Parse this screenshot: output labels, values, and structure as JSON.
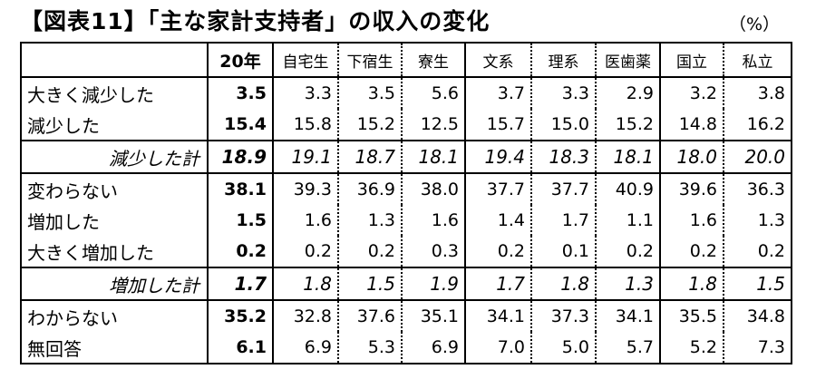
{
  "header": {
    "title": "【図表11】「主な家計支持者」の収入の変化",
    "unit": "（%）"
  },
  "table": {
    "columns": [
      "20年",
      "自宅生",
      "下宿生",
      "寮生",
      "文系",
      "理系",
      "医歯薬",
      "国立",
      "私立"
    ],
    "rows": [
      {
        "label": "大きく減少した",
        "values": [
          "3.5",
          "3.3",
          "3.5",
          "5.6",
          "3.7",
          "3.3",
          "2.9",
          "3.2",
          "3.8"
        ]
      },
      {
        "label": "減少した",
        "values": [
          "15.4",
          "15.8",
          "15.2",
          "12.5",
          "15.7",
          "15.0",
          "15.2",
          "14.8",
          "16.2"
        ]
      },
      {
        "label": "減少した計",
        "values": [
          "18.9",
          "19.1",
          "18.7",
          "18.1",
          "19.4",
          "18.3",
          "18.1",
          "18.0",
          "20.0"
        ]
      },
      {
        "label": "変わらない",
        "values": [
          "38.1",
          "39.3",
          "36.9",
          "38.0",
          "37.7",
          "37.7",
          "40.9",
          "39.6",
          "36.3"
        ]
      },
      {
        "label": "増加した",
        "values": [
          "1.5",
          "1.6",
          "1.3",
          "1.6",
          "1.4",
          "1.7",
          "1.1",
          "1.6",
          "1.3"
        ]
      },
      {
        "label": "大きく増加した",
        "values": [
          "0.2",
          "0.2",
          "0.2",
          "0.3",
          "0.2",
          "0.1",
          "0.2",
          "0.2",
          "0.2"
        ]
      },
      {
        "label": "増加した計",
        "values": [
          "1.7",
          "1.8",
          "1.5",
          "1.9",
          "1.7",
          "1.8",
          "1.3",
          "1.8",
          "1.5"
        ]
      },
      {
        "label": "わからない",
        "values": [
          "35.2",
          "32.8",
          "37.6",
          "35.1",
          "34.1",
          "37.3",
          "34.1",
          "35.5",
          "34.8"
        ]
      },
      {
        "label": "無回答",
        "values": [
          "6.1",
          "6.9",
          "5.3",
          "6.9",
          "7.0",
          "5.0",
          "5.7",
          "5.2",
          "7.3"
        ]
      }
    ]
  }
}
